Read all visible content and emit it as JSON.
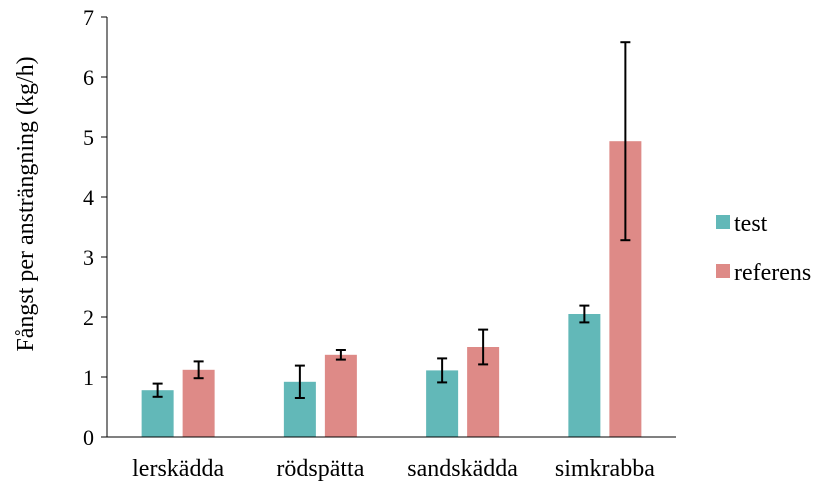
{
  "chart_data": {
    "type": "bar",
    "title": "",
    "xlabel": "",
    "ylabel": "Fångst per ansträngning (kg/h)",
    "ylim": [
      0,
      7
    ],
    "yticks": [
      0,
      1,
      2,
      3,
      4,
      5,
      6,
      7
    ],
    "grid": false,
    "legend_position": "right",
    "categories": [
      "lerskädda",
      "rödspätta",
      "sandskädda",
      "simkrabba"
    ],
    "series": [
      {
        "name": "test",
        "color": "#62b8b8",
        "values": [
          0.78,
          0.92,
          1.11,
          2.05
        ],
        "errors": [
          0.11,
          0.27,
          0.2,
          0.14
        ]
      },
      {
        "name": "referens",
        "color": "#de8a87",
        "values": [
          1.12,
          1.37,
          1.5,
          4.93
        ],
        "errors": [
          0.14,
          0.08,
          0.29,
          1.65
        ]
      }
    ]
  }
}
